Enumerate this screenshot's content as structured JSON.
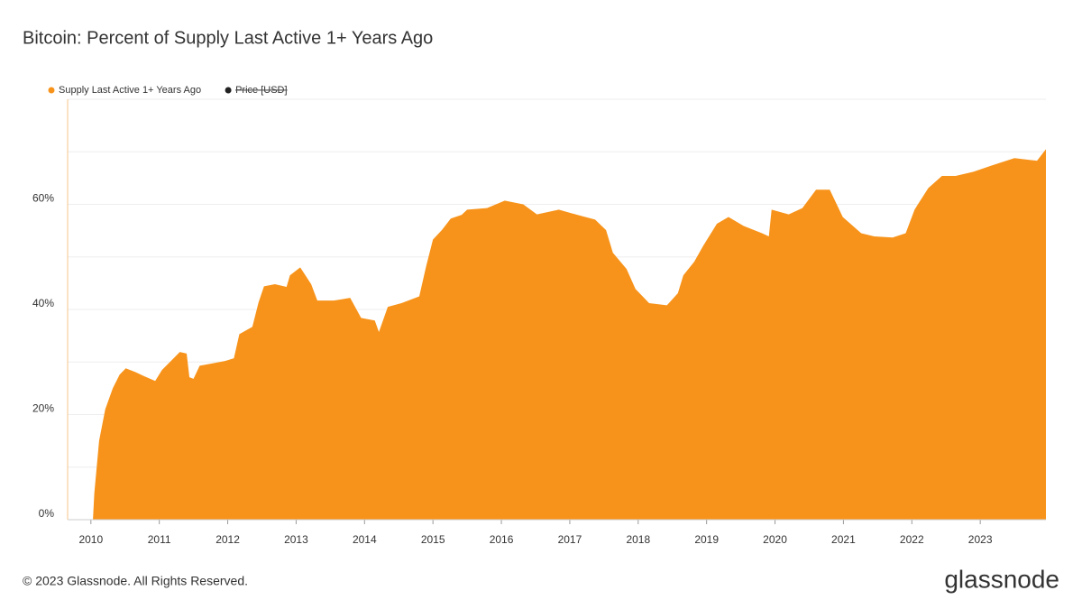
{
  "chart_data": {
    "type": "area",
    "title": "Bitcoin: Percent of Supply Last Active 1+ Years Ago",
    "footer": "© 2023 Glassnode. All Rights Reserved.",
    "brand": "glassnode",
    "series": [
      {
        "name": "Supply Last Active 1+ Years Ago",
        "color": "#f7931a",
        "x": [
          2010.03,
          2010.05,
          2010.12,
          2010.21,
          2010.32,
          2010.42,
          2010.51,
          2010.65,
          2010.78,
          2010.94,
          2011.04,
          2011.17,
          2011.3,
          2011.4,
          2011.44,
          2011.5,
          2011.59,
          2011.76,
          2011.96,
          2012.09,
          2012.17,
          2012.36,
          2012.45,
          2012.53,
          2012.69,
          2012.86,
          2012.91,
          2013.06,
          2013.22,
          2013.31,
          2013.55,
          2013.79,
          2013.95,
          2014.15,
          2014.21,
          2014.34,
          2014.54,
          2014.8,
          2014.9,
          2015.0,
          2015.13,
          2015.26,
          2015.42,
          2015.5,
          2015.79,
          2016.05,
          2016.32,
          2016.52,
          2016.84,
          2017.11,
          2017.37,
          2017.53,
          2017.63,
          2017.83,
          2017.96,
          2018.16,
          2018.42,
          2018.58,
          2018.66,
          2018.82,
          2018.95,
          2019.15,
          2019.32,
          2019.54,
          2019.81,
          2019.91,
          2019.95,
          2020.2,
          2020.4,
          2020.6,
          2020.8,
          2020.99,
          2021.26,
          2021.45,
          2021.72,
          2021.91,
          2022.04,
          2022.24,
          2022.44,
          2022.64,
          2022.9,
          2023.17,
          2023.5,
          2023.83,
          2023.96
        ],
        "values": [
          0,
          5,
          15,
          21,
          25,
          27.6,
          28.8,
          28.1,
          27.3,
          26.4,
          28.5,
          30.2,
          31.9,
          31.6,
          27.1,
          26.8,
          29.3,
          29.7,
          30.2,
          30.7,
          35.3,
          36.7,
          41.3,
          44.4,
          44.8,
          44.3,
          46.5,
          48.0,
          44.8,
          41.7,
          41.7,
          42.2,
          38.4,
          37.9,
          35.7,
          40.5,
          41.2,
          42.5,
          48.2,
          53.3,
          55.1,
          57.3,
          58,
          59.0,
          59.3,
          60.7,
          60.0,
          58.1,
          59.0,
          58,
          57.1,
          55.1,
          50.8,
          47.7,
          43.9,
          41.2,
          40.8,
          43.1,
          46.5,
          49.1,
          52.1,
          56.3,
          57.6,
          55.9,
          54.5,
          53.9,
          59.0,
          58.1,
          59.3,
          62.8,
          62.8,
          57.6,
          54.5,
          53.9,
          53.7,
          54.5,
          59.0,
          63.1,
          65.4,
          65.4,
          66.2,
          67.4,
          68.8,
          68.3,
          70.5
        ]
      }
    ],
    "hidden_series": [
      {
        "name": "Price [USD]",
        "color": "#222222"
      }
    ],
    "xlim": [
      2009.66,
      2023.96
    ],
    "xticks": [
      2010,
      2011,
      2012,
      2013,
      2014,
      2015,
      2016,
      2017,
      2018,
      2019,
      2020,
      2021,
      2022,
      2023
    ],
    "ylim": [
      0,
      80
    ],
    "yticks": [
      {
        "value": 0,
        "label": "0%"
      },
      {
        "value": 20,
        "label": "20%"
      },
      {
        "value": 40,
        "label": "40%"
      },
      {
        "value": 60,
        "label": "60%"
      }
    ],
    "minor_yticks": [
      10,
      30,
      50,
      70,
      80
    ],
    "grid": true
  }
}
